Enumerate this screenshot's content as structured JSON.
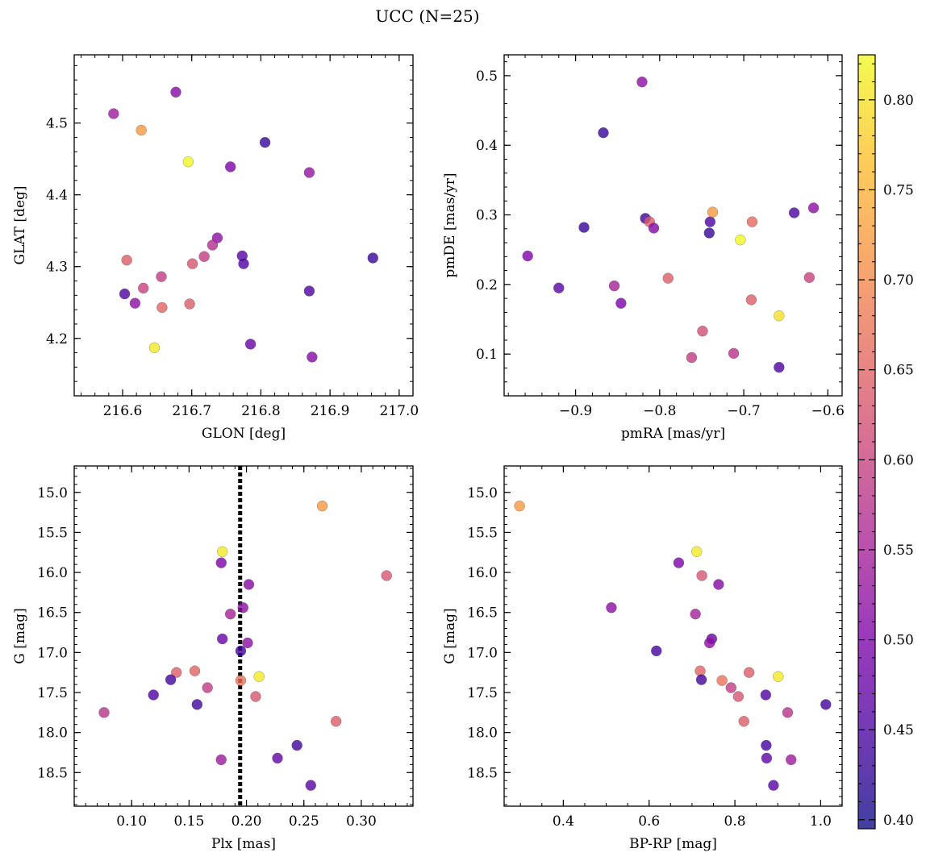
{
  "title": "UCC (N=25)",
  "colorbar": {
    "ticks": [
      "0.40",
      "0.45",
      "0.50",
      "0.55",
      "0.60",
      "0.65",
      "0.70",
      "0.75",
      "0.80"
    ],
    "range": [
      0.395,
      0.825
    ],
    "colormap": "plasma"
  },
  "chart_data": [
    {
      "type": "scatter",
      "id": "glon-glat",
      "xlabel": "GLON [deg]",
      "ylabel": "GLAT [deg]",
      "xlim": [
        216.53,
        217.02
      ],
      "ylim": [
        4.12,
        4.595
      ],
      "xticks": [
        "216.6",
        "216.7",
        "216.8",
        "216.9",
        "217.0"
      ],
      "yticks": [
        "4.2",
        "4.3",
        "4.4",
        "4.5"
      ],
      "invert_y": false,
      "points": [
        {
          "x": 216.587,
          "y": 4.513,
          "c": 0.54
        },
        {
          "x": 216.677,
          "y": 4.543,
          "c": 0.51
        },
        {
          "x": 216.627,
          "y": 4.49,
          "c": 0.72
        },
        {
          "x": 216.695,
          "y": 4.446,
          "c": 0.83
        },
        {
          "x": 216.756,
          "y": 4.439,
          "c": 0.5
        },
        {
          "x": 216.806,
          "y": 4.473,
          "c": 0.43
        },
        {
          "x": 216.87,
          "y": 4.431,
          "c": 0.53
        },
        {
          "x": 216.962,
          "y": 4.312,
          "c": 0.43
        },
        {
          "x": 216.737,
          "y": 4.34,
          "c": 0.52
        },
        {
          "x": 216.73,
          "y": 4.33,
          "c": 0.57
        },
        {
          "x": 216.773,
          "y": 4.315,
          "c": 0.46
        },
        {
          "x": 216.775,
          "y": 4.304,
          "c": 0.45
        },
        {
          "x": 216.718,
          "y": 4.314,
          "c": 0.59
        },
        {
          "x": 216.701,
          "y": 4.304,
          "c": 0.63
        },
        {
          "x": 216.606,
          "y": 4.309,
          "c": 0.64
        },
        {
          "x": 216.603,
          "y": 4.262,
          "c": 0.45
        },
        {
          "x": 216.63,
          "y": 4.27,
          "c": 0.6
        },
        {
          "x": 216.656,
          "y": 4.286,
          "c": 0.59
        },
        {
          "x": 216.618,
          "y": 4.249,
          "c": 0.52
        },
        {
          "x": 216.657,
          "y": 4.243,
          "c": 0.65
        },
        {
          "x": 216.697,
          "y": 4.248,
          "c": 0.64
        },
        {
          "x": 216.87,
          "y": 4.266,
          "c": 0.45
        },
        {
          "x": 216.646,
          "y": 4.187,
          "c": 0.81
        },
        {
          "x": 216.785,
          "y": 4.192,
          "c": 0.48
        },
        {
          "x": 216.874,
          "y": 4.174,
          "c": 0.51
        }
      ]
    },
    {
      "type": "scatter",
      "id": "pmra-pmde",
      "xlabel": "pmRA [mas/yr]",
      "ylabel": "pmDE [mas/yr]",
      "xlim": [
        -0.985,
        -0.583
      ],
      "ylim": [
        0.04,
        0.53
      ],
      "xticks": [
        "−0.9",
        "−0.8",
        "−0.7",
        "−0.6"
      ],
      "yticks": [
        "0.1",
        "0.2",
        "0.3",
        "0.4",
        "0.5"
      ],
      "invert_y": false,
      "points": [
        {
          "x": -0.821,
          "y": 0.491,
          "c": 0.52
        },
        {
          "x": -0.867,
          "y": 0.418,
          "c": 0.43
        },
        {
          "x": -0.89,
          "y": 0.282,
          "c": 0.43
        },
        {
          "x": -0.817,
          "y": 0.295,
          "c": 0.44
        },
        {
          "x": -0.812,
          "y": 0.29,
          "c": 0.64
        },
        {
          "x": -0.807,
          "y": 0.281,
          "c": 0.51
        },
        {
          "x": -0.74,
          "y": 0.29,
          "c": 0.45
        },
        {
          "x": -0.741,
          "y": 0.274,
          "c": 0.43
        },
        {
          "x": -0.737,
          "y": 0.304,
          "c": 0.72
        },
        {
          "x": -0.704,
          "y": 0.264,
          "c": 0.83
        },
        {
          "x": -0.69,
          "y": 0.29,
          "c": 0.66
        },
        {
          "x": -0.64,
          "y": 0.303,
          "c": 0.45
        },
        {
          "x": -0.617,
          "y": 0.31,
          "c": 0.52
        },
        {
          "x": -0.957,
          "y": 0.241,
          "c": 0.5
        },
        {
          "x": -0.92,
          "y": 0.195,
          "c": 0.46
        },
        {
          "x": -0.854,
          "y": 0.198,
          "c": 0.55
        },
        {
          "x": -0.846,
          "y": 0.173,
          "c": 0.5
        },
        {
          "x": -0.79,
          "y": 0.209,
          "c": 0.64
        },
        {
          "x": -0.691,
          "y": 0.178,
          "c": 0.64
        },
        {
          "x": -0.622,
          "y": 0.21,
          "c": 0.6
        },
        {
          "x": -0.658,
          "y": 0.155,
          "c": 0.8
        },
        {
          "x": -0.749,
          "y": 0.133,
          "c": 0.62
        },
        {
          "x": -0.762,
          "y": 0.095,
          "c": 0.59
        },
        {
          "x": -0.712,
          "y": 0.101,
          "c": 0.58
        },
        {
          "x": -0.658,
          "y": 0.081,
          "c": 0.45
        }
      ]
    },
    {
      "type": "scatter",
      "id": "plx-g",
      "xlabel": "Plx [mas]",
      "ylabel": "G [mag]",
      "xlim": [
        0.05,
        0.345
      ],
      "ylim": [
        14.67,
        18.92
      ],
      "xticks": [
        "0.10",
        "0.15",
        "0.20",
        "0.25",
        "0.30"
      ],
      "yticks": [
        "15.0",
        "15.5",
        "16.0",
        "16.5",
        "17.0",
        "17.5",
        "18.0",
        "18.5"
      ],
      "invert_y": true,
      "vline": 0.1945,
      "points": [
        {
          "x": 0.266,
          "y": 15.17,
          "c": 0.72
        },
        {
          "x": 0.179,
          "y": 15.74,
          "c": 0.81
        },
        {
          "x": 0.178,
          "y": 15.88,
          "c": 0.5
        },
        {
          "x": 0.322,
          "y": 16.04,
          "c": 0.63
        },
        {
          "x": 0.202,
          "y": 16.15,
          "c": 0.51
        },
        {
          "x": 0.197,
          "y": 16.44,
          "c": 0.52
        },
        {
          "x": 0.186,
          "y": 16.52,
          "c": 0.55
        },
        {
          "x": 0.179,
          "y": 16.83,
          "c": 0.48
        },
        {
          "x": 0.201,
          "y": 16.88,
          "c": 0.52
        },
        {
          "x": 0.195,
          "y": 16.98,
          "c": 0.44
        },
        {
          "x": 0.139,
          "y": 17.25,
          "c": 0.64
        },
        {
          "x": 0.155,
          "y": 17.23,
          "c": 0.65
        },
        {
          "x": 0.211,
          "y": 17.3,
          "c": 0.81
        },
        {
          "x": 0.134,
          "y": 17.34,
          "c": 0.44
        },
        {
          "x": 0.195,
          "y": 17.35,
          "c": 0.67
        },
        {
          "x": 0.166,
          "y": 17.44,
          "c": 0.59
        },
        {
          "x": 0.208,
          "y": 17.55,
          "c": 0.63
        },
        {
          "x": 0.119,
          "y": 17.53,
          "c": 0.45
        },
        {
          "x": 0.157,
          "y": 17.65,
          "c": 0.44
        },
        {
          "x": 0.076,
          "y": 17.75,
          "c": 0.58
        },
        {
          "x": 0.278,
          "y": 17.86,
          "c": 0.64
        },
        {
          "x": 0.244,
          "y": 18.16,
          "c": 0.44
        },
        {
          "x": 0.227,
          "y": 18.32,
          "c": 0.47
        },
        {
          "x": 0.178,
          "y": 18.34,
          "c": 0.54
        },
        {
          "x": 0.256,
          "y": 18.66,
          "c": 0.46
        }
      ]
    },
    {
      "type": "scatter",
      "id": "bprp-g",
      "xlabel": "BP-RP [mag]",
      "ylabel": "G [mag]",
      "xlim": [
        0.262,
        1.05
      ],
      "ylim": [
        14.67,
        18.92
      ],
      "xticks": [
        "0.4",
        "0.6",
        "0.8",
        "1.0"
      ],
      "yticks": [
        "15.0",
        "15.5",
        "16.0",
        "16.5",
        "17.0",
        "17.5",
        "18.0",
        "18.5"
      ],
      "invert_y": true,
      "points": [
        {
          "x": 0.298,
          "y": 15.17,
          "c": 0.72
        },
        {
          "x": 0.711,
          "y": 15.74,
          "c": 0.81
        },
        {
          "x": 0.669,
          "y": 15.88,
          "c": 0.5
        },
        {
          "x": 0.723,
          "y": 16.04,
          "c": 0.63
        },
        {
          "x": 0.762,
          "y": 16.15,
          "c": 0.51
        },
        {
          "x": 0.512,
          "y": 16.44,
          "c": 0.52
        },
        {
          "x": 0.708,
          "y": 16.52,
          "c": 0.55
        },
        {
          "x": 0.746,
          "y": 16.83,
          "c": 0.48
        },
        {
          "x": 0.741,
          "y": 16.88,
          "c": 0.52
        },
        {
          "x": 0.617,
          "y": 16.98,
          "c": 0.44
        },
        {
          "x": 0.833,
          "y": 17.25,
          "c": 0.64
        },
        {
          "x": 0.719,
          "y": 17.23,
          "c": 0.65
        },
        {
          "x": 0.901,
          "y": 17.3,
          "c": 0.81
        },
        {
          "x": 0.722,
          "y": 17.34,
          "c": 0.44
        },
        {
          "x": 0.77,
          "y": 17.35,
          "c": 0.67
        },
        {
          "x": 0.791,
          "y": 17.44,
          "c": 0.59
        },
        {
          "x": 0.808,
          "y": 17.55,
          "c": 0.63
        },
        {
          "x": 0.872,
          "y": 17.53,
          "c": 0.45
        },
        {
          "x": 1.012,
          "y": 17.65,
          "c": 0.44
        },
        {
          "x": 0.923,
          "y": 17.75,
          "c": 0.58
        },
        {
          "x": 0.821,
          "y": 17.86,
          "c": 0.64
        },
        {
          "x": 0.873,
          "y": 18.16,
          "c": 0.44
        },
        {
          "x": 0.874,
          "y": 18.32,
          "c": 0.47
        },
        {
          "x": 0.931,
          "y": 18.34,
          "c": 0.54
        },
        {
          "x": 0.89,
          "y": 18.66,
          "c": 0.46
        }
      ]
    }
  ]
}
